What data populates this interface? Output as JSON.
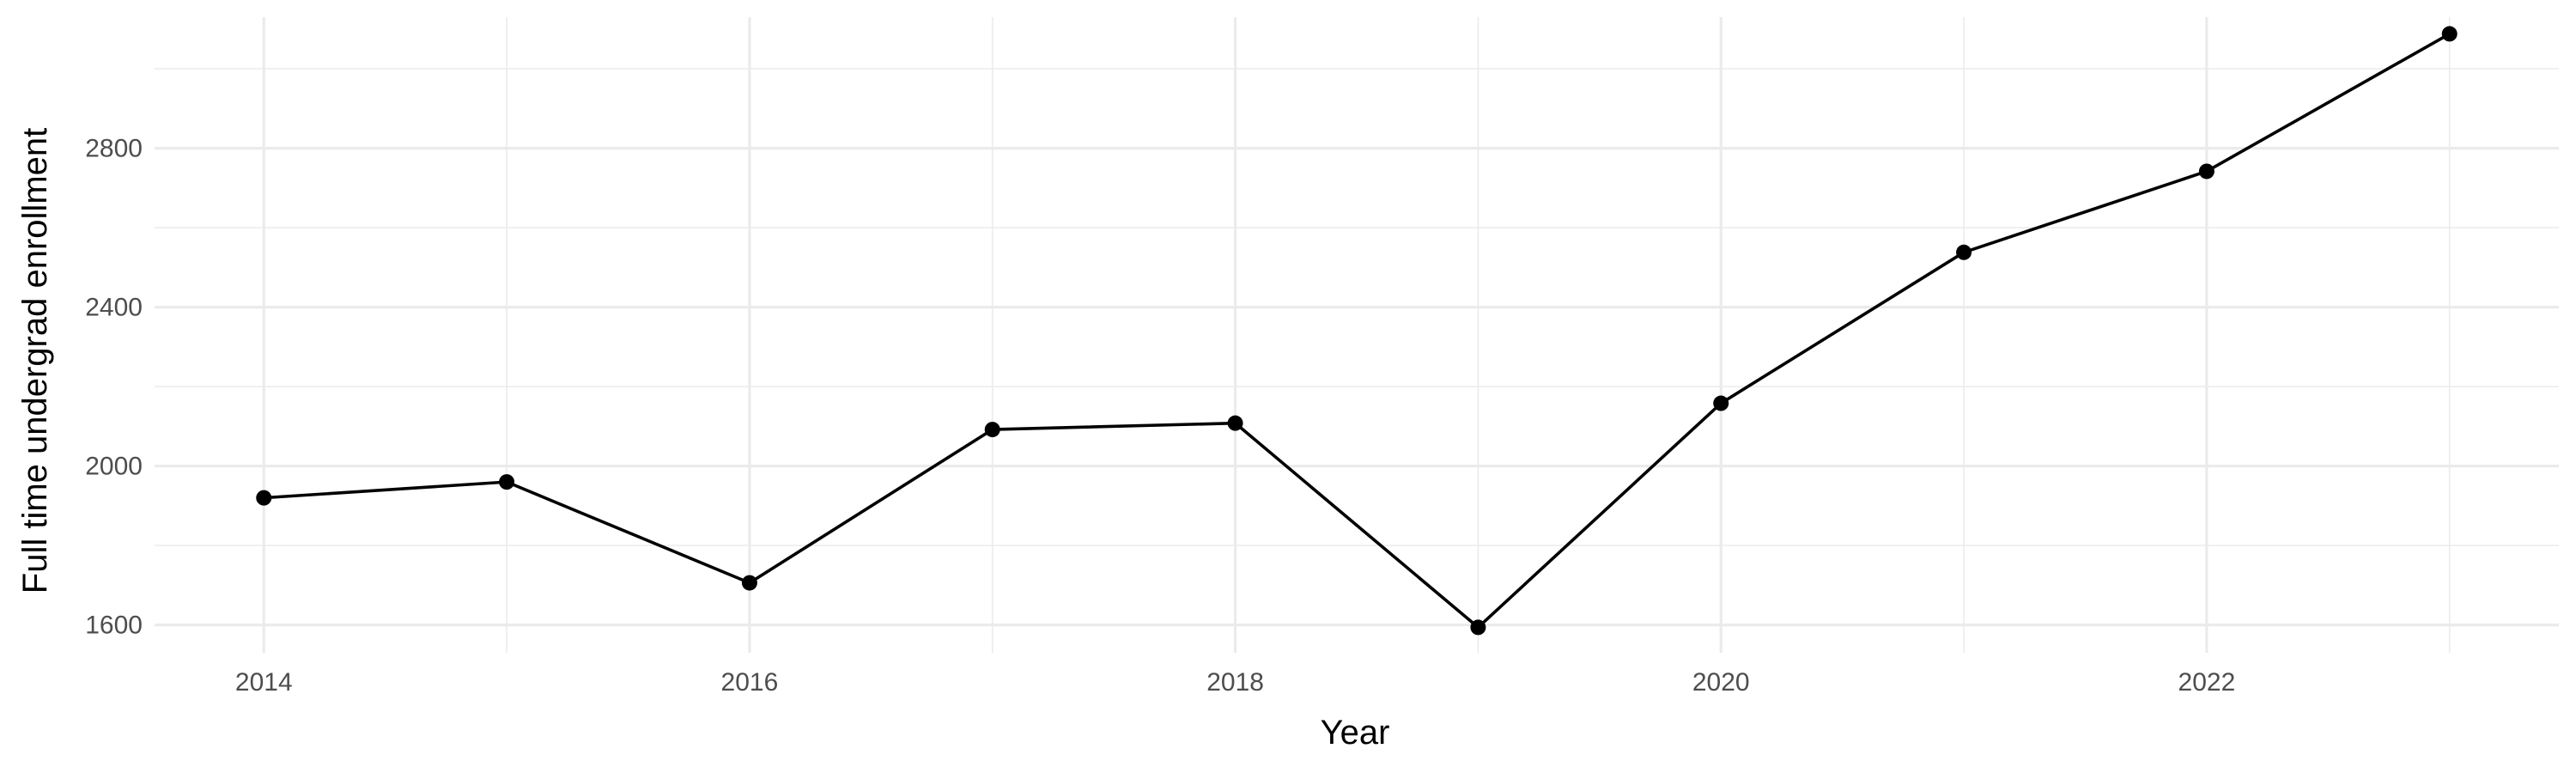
{
  "chart_data": {
    "type": "line",
    "title": "",
    "xlabel": "Year",
    "ylabel": "Full time undergrad enrollment",
    "x": [
      2014,
      2015,
      2016,
      2017,
      2018,
      2019,
      2020,
      2021,
      2022,
      2023
    ],
    "series": [
      {
        "values": [
          1920,
          1960,
          1706,
          2092,
          2108,
          1594,
          2158,
          2538,
          2742,
          3088
        ]
      }
    ],
    "xlim": [
      2013.55,
      2023.45
    ],
    "ylim": [
      1530,
      3130
    ],
    "x_ticks": [
      "2014",
      "2016",
      "2018",
      "2020",
      "2022"
    ],
    "y_ticks": [
      "1600",
      "2000",
      "2400",
      "2800"
    ],
    "grid": true,
    "legend": "none",
    "colors": {
      "line": "#000000",
      "points": "#000000",
      "grid": "#ebebeb",
      "background": "#ffffff"
    }
  }
}
